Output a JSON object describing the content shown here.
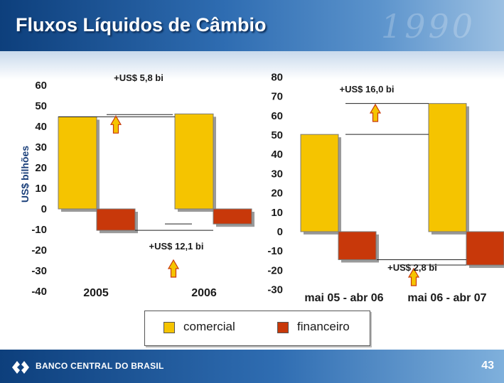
{
  "slide": {
    "title": "Fluxos Líquidos de Câmbio",
    "bank_name": "BANCO CENTRAL DO BRASIL",
    "page_number": "43",
    "header_decoration": "1990"
  },
  "legend": {
    "items": [
      {
        "label": "comercial",
        "color": "#f5c400"
      },
      {
        "label": "financeiro",
        "color": "#c8380a"
      }
    ]
  },
  "chart_data": [
    {
      "type": "bar",
      "ylabel": "US$ bilhões",
      "ylim": [
        -40,
        60
      ],
      "yticks": [
        "60",
        "50",
        "40",
        "30",
        "20",
        "10",
        "0",
        "-10",
        "-20",
        "-30",
        "-40"
      ],
      "categories": [
        "2005",
        "2006"
      ],
      "series": [
        {
          "name": "comercial",
          "values": [
            44.7,
            46.1
          ]
        },
        {
          "name": "financeiro",
          "values": [
            -10.4,
            -7.3
          ]
        }
      ],
      "annotations": [
        "+US$ 5,8 bi",
        "+US$ 12,1 bi"
      ]
    },
    {
      "type": "bar",
      "ylim": [
        -30,
        80
      ],
      "yticks": [
        "80",
        "70",
        "60",
        "50",
        "40",
        "30",
        "20",
        "10",
        "0",
        "-10",
        "-20",
        "-30"
      ],
      "categories": [
        "mai 05 - abr 06",
        "mai 06 - abr 07"
      ],
      "series": [
        {
          "name": "comercial",
          "values": [
            50.3,
            66.3
          ]
        },
        {
          "name": "financeiro",
          "values": [
            -14.5,
            -17.3
          ]
        }
      ],
      "annotations": [
        "+US$ 16,0 bi",
        "+US$ 2,8 bi"
      ]
    }
  ],
  "colors": {
    "comercial": "#f5c400",
    "financeiro": "#c8380a",
    "arrow_fill": "#f5c400",
    "arrow_stroke": "#c8380a"
  }
}
